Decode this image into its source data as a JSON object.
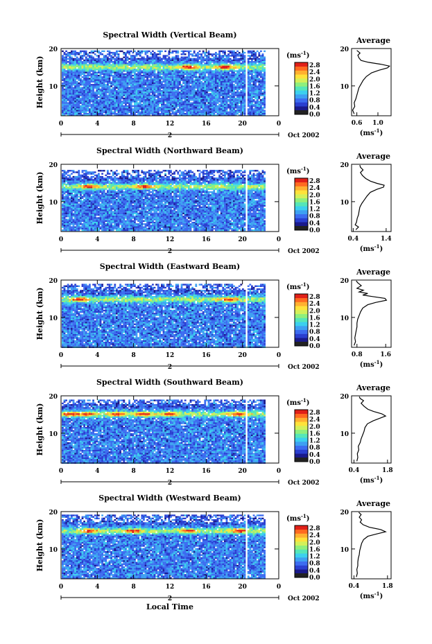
{
  "figure": {
    "bottom_xlabel": "Local Time",
    "colors": [
      "#1a1a8c",
      "#2a3fd0",
      "#3c6cf0",
      "#3ea0f2",
      "#3cd0ee",
      "#55e6b8",
      "#8fef7d",
      "#d4f05a",
      "#ffe23a",
      "#ffb030",
      "#ff6a20",
      "#e02018"
    ],
    "heat_threshold": 0.5
  },
  "chart_data": [
    {
      "type": "heatmap",
      "title": "Spectral Width (Vertical Beam)",
      "ylabel": "Height (km)",
      "y_ticks": [
        "20",
        "10"
      ],
      "x_ticks": [
        "0",
        "4",
        "8",
        "12",
        "16",
        "20",
        "0"
      ],
      "date_marker": "2",
      "date_label": "Oct 2002",
      "xlim": [
        0,
        24
      ],
      "ylim": [
        2,
        20
      ],
      "colorbar": {
        "unit": "(ms",
        "unit_exp": "-1",
        "unit_close": ")",
        "ticks": [
          "2.8",
          "2.4",
          "2.0",
          "1.6",
          "1.2",
          "0.8",
          "0.4",
          "0.0"
        ]
      },
      "heat": {
        "data_end": 22.5,
        "peak_height": 15.2,
        "peak_hours": [
          14,
          18
        ],
        "gaps": [
          20.2,
          20.5
        ],
        "seed": 11,
        "top_height": 19.5
      },
      "average": {
        "title": "Average",
        "xlabel": "(ms",
        "xlabel_exp": "-1",
        "xlabel_close": ")",
        "x_ticks": [
          "0.6",
          "1.0"
        ],
        "x_tick_values": [
          0.6,
          1.0
        ],
        "xlim": [
          0.5,
          1.25
        ],
        "y_ticks": [
          "20",
          "10"
        ],
        "profile": [
          [
            2.5,
            0.55
          ],
          [
            3.5,
            0.52
          ],
          [
            4.5,
            0.56
          ],
          [
            5.5,
            0.55
          ],
          [
            6.5,
            0.58
          ],
          [
            7.5,
            0.6
          ],
          [
            8.5,
            0.62
          ],
          [
            9.5,
            0.64
          ],
          [
            10.5,
            0.68
          ],
          [
            11.5,
            0.72
          ],
          [
            12.5,
            0.78
          ],
          [
            13.5,
            0.88
          ],
          [
            14.2,
            1.02
          ],
          [
            14.8,
            1.18
          ],
          [
            15.3,
            1.22
          ],
          [
            15.8,
            1.05
          ],
          [
            16.3,
            0.82
          ],
          [
            16.8,
            0.68
          ],
          [
            17.5,
            0.64
          ],
          [
            18.2,
            0.62
          ],
          [
            18.8,
            0.66
          ],
          [
            19.5,
            0.6
          ]
        ]
      }
    },
    {
      "type": "heatmap",
      "title": "Spectral Width (Northward Beam)",
      "ylabel": "Height (km)",
      "y_ticks": [
        "20",
        "10"
      ],
      "x_ticks": [
        "0",
        "4",
        "8",
        "12",
        "16",
        "20",
        "0"
      ],
      "date_marker": "2",
      "date_label": "Oct 2002",
      "xlim": [
        0,
        24
      ],
      "ylim": [
        2,
        20
      ],
      "colorbar": {
        "unit": "(ms",
        "unit_exp": "-1",
        "unit_close": ")",
        "ticks": [
          "2.8",
          "2.4",
          "2.0",
          "1.6",
          "1.2",
          "0.8",
          "0.4",
          "0.0"
        ]
      },
      "heat": {
        "data_end": 22.5,
        "peak_height": 14.2,
        "peak_hours": [
          3,
          9
        ],
        "gaps": [
          20.2,
          20.5
        ],
        "seed": 23,
        "top_height": 18.5
      },
      "average": {
        "title": "Average",
        "xlabel": "(ms",
        "xlabel_exp": "-1",
        "xlabel_close": ")",
        "x_ticks": [
          "0.4",
          "1.4"
        ],
        "x_tick_values": [
          0.4,
          1.4
        ],
        "xlim": [
          0.35,
          1.55
        ],
        "y_ticks": [
          "20",
          "10"
        ],
        "profile": [
          [
            2.5,
            0.48
          ],
          [
            3.2,
            0.56
          ],
          [
            3.8,
            0.46
          ],
          [
            4.5,
            0.5
          ],
          [
            5.5,
            0.52
          ],
          [
            6.5,
            0.56
          ],
          [
            7.5,
            0.58
          ],
          [
            8.5,
            0.6
          ],
          [
            9.5,
            0.66
          ],
          [
            10.5,
            0.74
          ],
          [
            11.5,
            0.82
          ],
          [
            12.5,
            0.92
          ],
          [
            13.3,
            1.12
          ],
          [
            13.9,
            1.32
          ],
          [
            14.4,
            1.34
          ],
          [
            14.9,
            1.12
          ],
          [
            15.5,
            0.92
          ],
          [
            16.2,
            0.78
          ],
          [
            17,
            0.68
          ],
          [
            17.8,
            0.62
          ],
          [
            18.5,
            0.7
          ],
          [
            19.2,
            0.62
          ],
          [
            19.8,
            0.6
          ]
        ]
      }
    },
    {
      "type": "heatmap",
      "title": "Spectral Width (Eastward Beam)",
      "ylabel": "Height (km)",
      "y_ticks": [
        "20",
        "10"
      ],
      "x_ticks": [
        "0",
        "4",
        "8",
        "12",
        "16",
        "20",
        "0"
      ],
      "date_marker": "2",
      "date_label": "Oct 2002",
      "xlim": [
        0,
        24
      ],
      "ylim": [
        2,
        20
      ],
      "colorbar": {
        "unit": "(ms",
        "unit_exp": "-1",
        "unit_close": ")",
        "ticks": [
          "2.8",
          "2.4",
          "2.0",
          "1.6",
          "1.2",
          "0.8",
          "0.4",
          "0.0"
        ]
      },
      "heat": {
        "data_end": 22.5,
        "peak_height": 15.0,
        "peak_hours": [
          2,
          18.5
        ],
        "gaps": [
          20.2,
          20.5
        ],
        "seed": 37,
        "top_height": 19.0
      },
      "average": {
        "title": "Average",
        "xlabel": "(ms",
        "xlabel_exp": "-1",
        "xlabel_close": ")",
        "x_ticks": [
          "0.8",
          "1.6"
        ],
        "x_tick_values": [
          0.8,
          1.6
        ],
        "xlim": [
          0.65,
          1.75
        ],
        "y_ticks": [
          "20",
          "10"
        ],
        "profile": [
          [
            2.5,
            0.72
          ],
          [
            3.5,
            0.76
          ],
          [
            4.5,
            0.74
          ],
          [
            5.5,
            0.76
          ],
          [
            6.5,
            0.78
          ],
          [
            7.5,
            0.8
          ],
          [
            8.5,
            0.8
          ],
          [
            9.5,
            0.82
          ],
          [
            10.5,
            0.86
          ],
          [
            11.5,
            0.9
          ],
          [
            12.5,
            0.96
          ],
          [
            13.4,
            1.1
          ],
          [
            14.0,
            1.32
          ],
          [
            14.6,
            1.62
          ],
          [
            15.1,
            1.58
          ],
          [
            15.6,
            1.22
          ],
          [
            16.0,
            0.96
          ],
          [
            16.4,
            1.1
          ],
          [
            16.8,
            0.86
          ],
          [
            17.3,
            0.98
          ],
          [
            17.8,
            0.8
          ],
          [
            18.5,
            0.92
          ],
          [
            19.3,
            0.82
          ],
          [
            19.8,
            0.78
          ]
        ]
      }
    },
    {
      "type": "heatmap",
      "title": "Spectral Width (Southward Beam)",
      "ylabel": "Height (km)",
      "y_ticks": [
        "20",
        "10"
      ],
      "x_ticks": [
        "0",
        "4",
        "8",
        "12",
        "16",
        "20",
        "0"
      ],
      "date_marker": "2",
      "date_label": "Oct 2002",
      "xlim": [
        0,
        24
      ],
      "ylim": [
        2,
        20
      ],
      "colorbar": {
        "unit": "(ms",
        "unit_exp": "-1",
        "unit_close": ")",
        "ticks": [
          "2.8",
          "2.4",
          "2.0",
          "1.6",
          "1.2",
          "0.8",
          "0.4",
          "0.0"
        ]
      },
      "heat": {
        "data_end": 22.5,
        "peak_height": 15.3,
        "peak_hours": [
          1,
          3,
          6,
          9,
          12,
          19.5
        ],
        "gaps": [
          20.2,
          20.5
        ],
        "seed": 53,
        "top_height": 19.0
      },
      "average": {
        "title": "Average",
        "xlabel": "(ms",
        "xlabel_exp": "-1",
        "xlabel_close": ")",
        "x_ticks": [
          "0.4",
          "1.8"
        ],
        "x_tick_values": [
          0.4,
          1.8
        ],
        "xlim": [
          0.3,
          1.95
        ],
        "y_ticks": [
          "20",
          "10"
        ],
        "profile": [
          [
            2.5,
            0.52
          ],
          [
            3.5,
            0.56
          ],
          [
            4.5,
            0.54
          ],
          [
            5.5,
            0.6
          ],
          [
            6.5,
            0.58
          ],
          [
            7.5,
            0.66
          ],
          [
            8.5,
            0.7
          ],
          [
            9.5,
            0.76
          ],
          [
            10.5,
            0.82
          ],
          [
            11.5,
            0.86
          ],
          [
            12.5,
            0.96
          ],
          [
            13.3,
            1.2
          ],
          [
            14.0,
            1.48
          ],
          [
            14.6,
            1.72
          ],
          [
            15.2,
            1.56
          ],
          [
            15.8,
            1.22
          ],
          [
            16.4,
            0.98
          ],
          [
            17.2,
            0.82
          ],
          [
            18.0,
            0.7
          ],
          [
            18.7,
            0.8
          ],
          [
            19.3,
            0.66
          ],
          [
            19.8,
            0.62
          ]
        ]
      }
    },
    {
      "type": "heatmap",
      "title": "Spectral Width (Westward Beam)",
      "ylabel": "Height (km)",
      "y_ticks": [
        "20",
        "10"
      ],
      "x_ticks": [
        "0",
        "4",
        "8",
        "12",
        "16",
        "20",
        "0"
      ],
      "date_marker": "2",
      "date_label": "Oct 2002",
      "xlim": [
        0,
        24
      ],
      "ylim": [
        2,
        20
      ],
      "colorbar": {
        "unit": "(ms",
        "unit_exp": "-1",
        "unit_close": ")",
        "ticks": [
          "2.8",
          "2.4",
          "2.0",
          "1.6",
          "1.2",
          "0.8",
          "0.4",
          "0.0"
        ]
      },
      "heat": {
        "data_end": 22.5,
        "peak_height": 15.0,
        "peak_hours": [
          3,
          8,
          14,
          19.5
        ],
        "gaps": [
          20.2,
          20.5
        ],
        "seed": 71,
        "top_height": 19.2
      },
      "average": {
        "title": "Average",
        "xlabel": "(ms",
        "xlabel_exp": "-1",
        "xlabel_close": ")",
        "x_ticks": [
          "0.4",
          "1.8"
        ],
        "x_tick_values": [
          0.4,
          1.8
        ],
        "xlim": [
          0.3,
          1.95
        ],
        "y_ticks": [
          "20",
          "10"
        ],
        "profile": [
          [
            2.5,
            0.5
          ],
          [
            3.5,
            0.54
          ],
          [
            4.5,
            0.52
          ],
          [
            5.5,
            0.56
          ],
          [
            6.5,
            0.56
          ],
          [
            7.5,
            0.58
          ],
          [
            8.5,
            0.62
          ],
          [
            9.5,
            0.64
          ],
          [
            10.5,
            0.68
          ],
          [
            11.5,
            0.72
          ],
          [
            12.5,
            0.8
          ],
          [
            13.4,
            0.98
          ],
          [
            14.0,
            1.34
          ],
          [
            14.6,
            1.72
          ],
          [
            15.2,
            1.52
          ],
          [
            15.8,
            1.04
          ],
          [
            16.5,
            0.78
          ],
          [
            17.2,
            0.66
          ],
          [
            17.8,
            0.72
          ],
          [
            18.5,
            0.62
          ],
          [
            19.2,
            0.7
          ],
          [
            19.8,
            0.6
          ]
        ]
      }
    }
  ]
}
